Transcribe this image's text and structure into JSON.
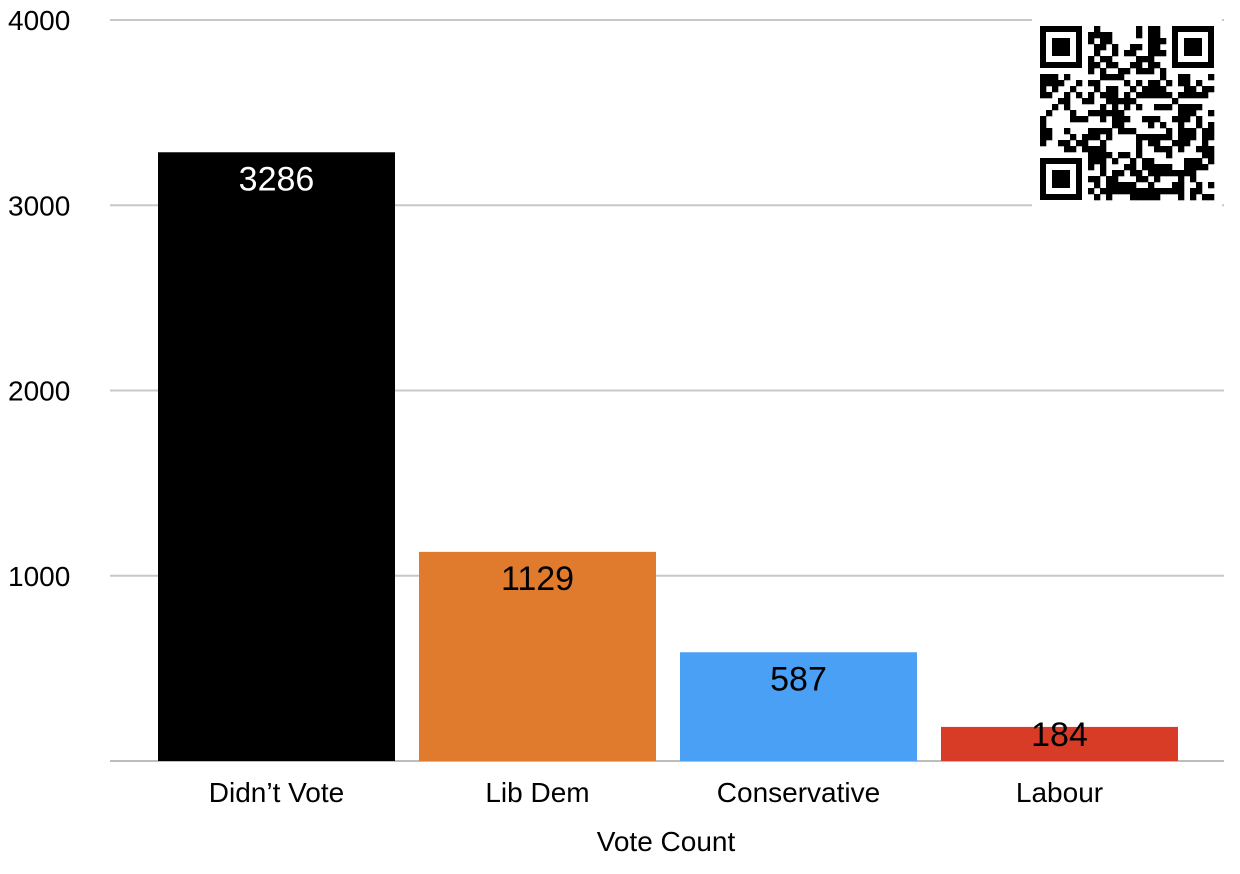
{
  "chart_data": {
    "type": "bar",
    "categories": [
      "Didn’t Vote",
      "Lib Dem",
      "Conservative",
      "Labour"
    ],
    "values": [
      3286,
      1129,
      587,
      184
    ],
    "colors": [
      "#000000",
      "#e07b2e",
      "#4aa0f5",
      "#d93c26"
    ],
    "data_label_colors": [
      "#ffffff",
      "#000000",
      "#000000",
      "#000000"
    ],
    "title": "",
    "xlabel": "Vote Count",
    "ylabel": "",
    "ylim": [
      0,
      4000
    ],
    "yticks": [
      "1000",
      "2000",
      "3000",
      "4000"
    ],
    "ytick_values": [
      1000,
      2000,
      3000,
      4000
    ],
    "grid": true,
    "legend": "none"
  },
  "qr_code": {
    "icon": "qr-code-icon"
  }
}
